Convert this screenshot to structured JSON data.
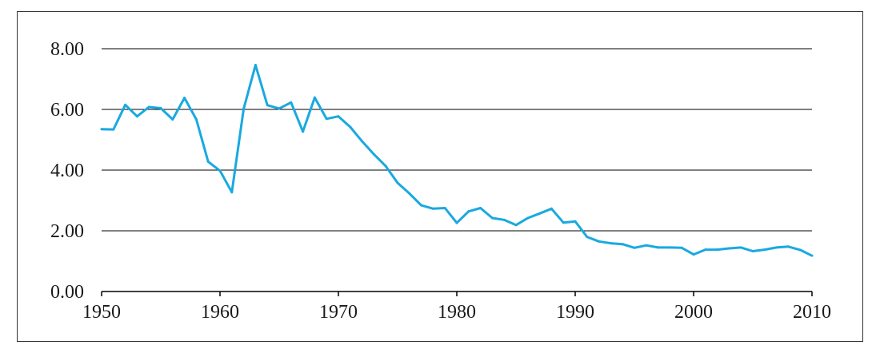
{
  "chart_data": {
    "type": "line",
    "title": "",
    "xlabel": "",
    "ylabel": "",
    "xlim": [
      1950,
      2010
    ],
    "ylim": [
      0,
      8
    ],
    "x_ticks": [
      "1950",
      "1960",
      "1970",
      "1980",
      "1990",
      "2000",
      "2010"
    ],
    "y_ticks": [
      "0.00",
      "2.00",
      "4.00",
      "6.00",
      "8.00"
    ],
    "grid": "horizontal",
    "legend": "none",
    "series": [
      {
        "color": "#19a9e0",
        "x": [
          1950,
          1951,
          1952,
          1953,
          1954,
          1955,
          1956,
          1957,
          1958,
          1959,
          1960,
          1961,
          1962,
          1963,
          1964,
          1965,
          1966,
          1967,
          1968,
          1969,
          1970,
          1971,
          1972,
          1973,
          1974,
          1975,
          1976,
          1977,
          1978,
          1979,
          1980,
          1981,
          1982,
          1983,
          1984,
          1985,
          1986,
          1987,
          1988,
          1989,
          1990,
          1991,
          1992,
          1993,
          1994,
          1995,
          1996,
          1997,
          1998,
          1999,
          2000,
          2001,
          2002,
          2003,
          2004,
          2005,
          2006,
          2007,
          2008,
          2009,
          2010
        ],
        "y": [
          5.35,
          5.34,
          6.15,
          5.77,
          6.08,
          6.04,
          5.67,
          6.38,
          5.67,
          4.28,
          3.98,
          3.27,
          6.02,
          7.46,
          6.14,
          6.03,
          6.23,
          5.27,
          6.39,
          5.69,
          5.77,
          5.42,
          4.95,
          4.52,
          4.13,
          3.58,
          3.23,
          2.84,
          2.73,
          2.75,
          2.26,
          2.64,
          2.75,
          2.42,
          2.36,
          2.19,
          2.42,
          2.57,
          2.73,
          2.27,
          2.31,
          1.8,
          1.65,
          1.59,
          1.56,
          1.44,
          1.52,
          1.45,
          1.45,
          1.44,
          1.22,
          1.38,
          1.38,
          1.42,
          1.45,
          1.33,
          1.38,
          1.45,
          1.48,
          1.37,
          1.18
        ]
      }
    ]
  }
}
